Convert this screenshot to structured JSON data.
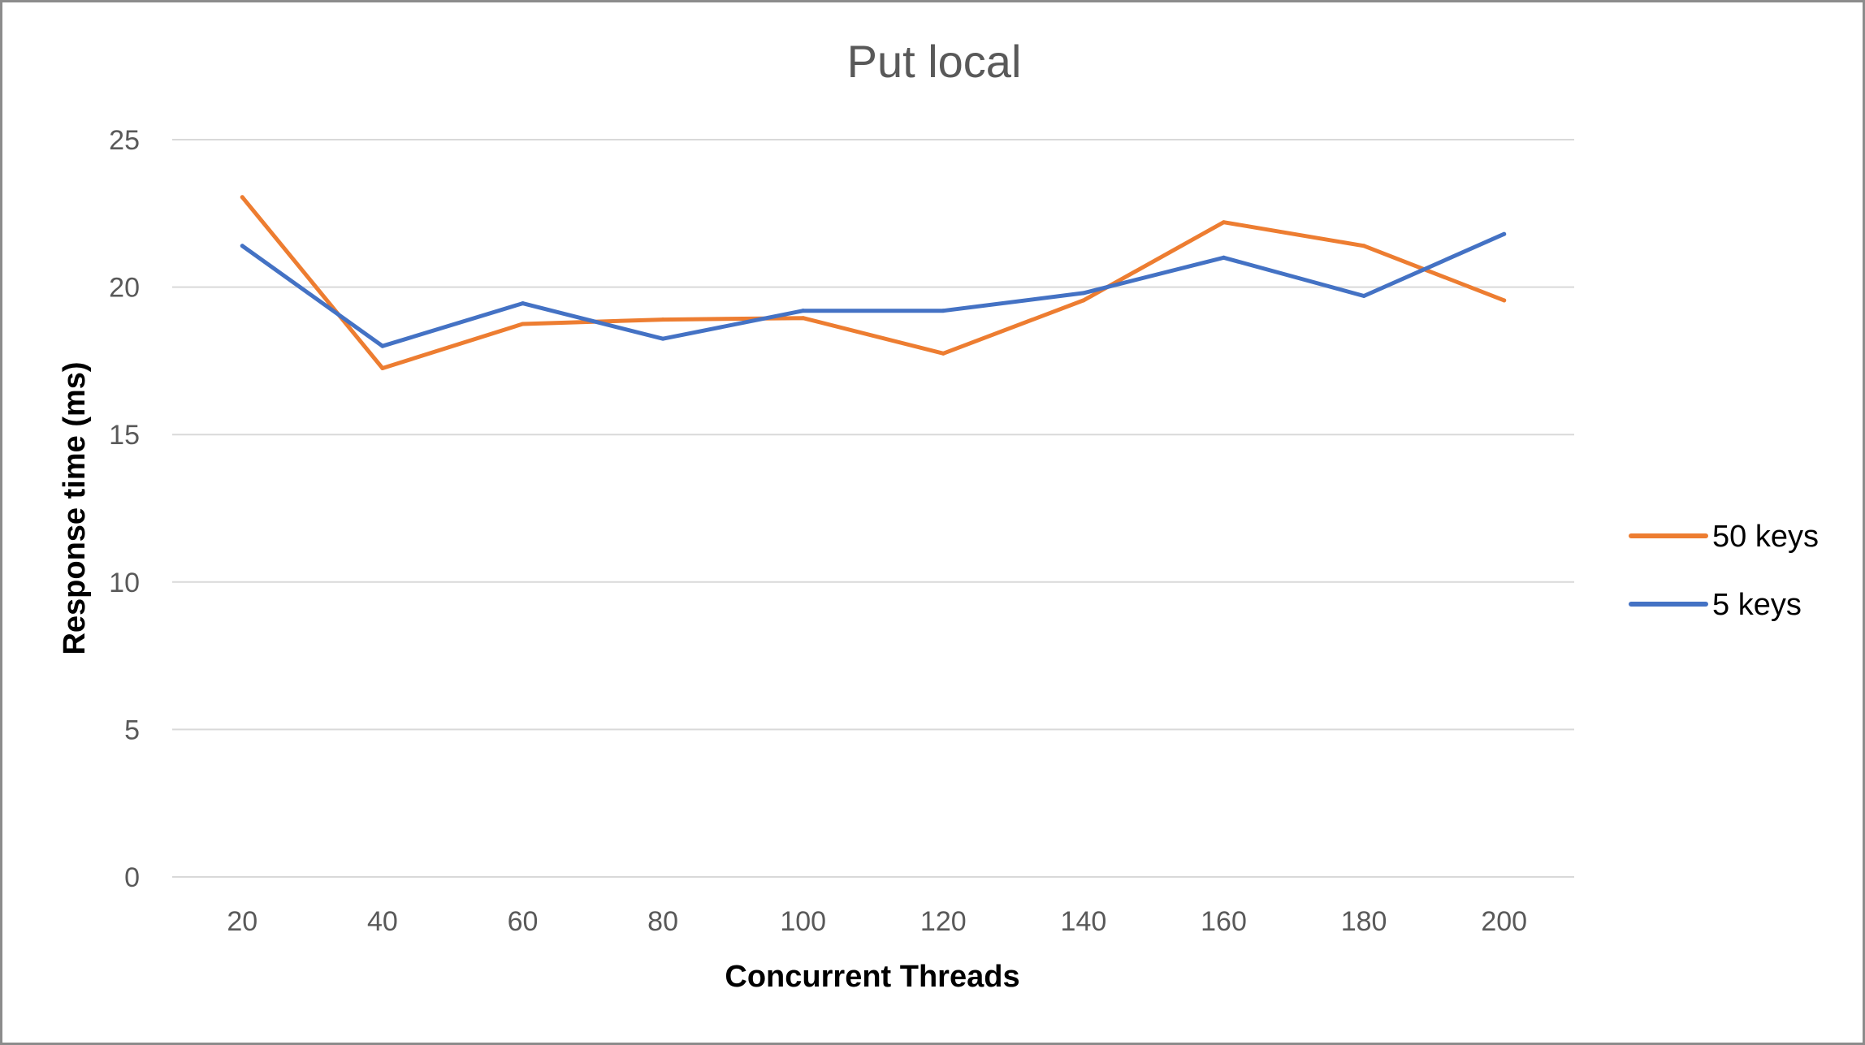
{
  "chart_data": {
    "type": "line",
    "title": "Put local",
    "xlabel": "Concurrent Threads",
    "ylabel": "Response time (ms)",
    "categories": [
      "20",
      "40",
      "60",
      "80",
      "100",
      "120",
      "140",
      "160",
      "180",
      "200"
    ],
    "y_ticks": [
      "0",
      "5",
      "10",
      "15",
      "20",
      "25"
    ],
    "ylim": [
      0,
      25
    ],
    "grid": true,
    "legend_position": "right",
    "series": [
      {
        "name": "50 keys",
        "color": "#ed7d31",
        "values": [
          23.05,
          17.25,
          18.75,
          18.9,
          18.95,
          17.75,
          19.55,
          22.2,
          21.4,
          19.55
        ]
      },
      {
        "name": "5 keys",
        "color": "#4472c4",
        "values": [
          21.4,
          18.0,
          19.45,
          18.25,
          19.2,
          19.2,
          19.8,
          21.0,
          19.7,
          21.8
        ]
      }
    ]
  }
}
